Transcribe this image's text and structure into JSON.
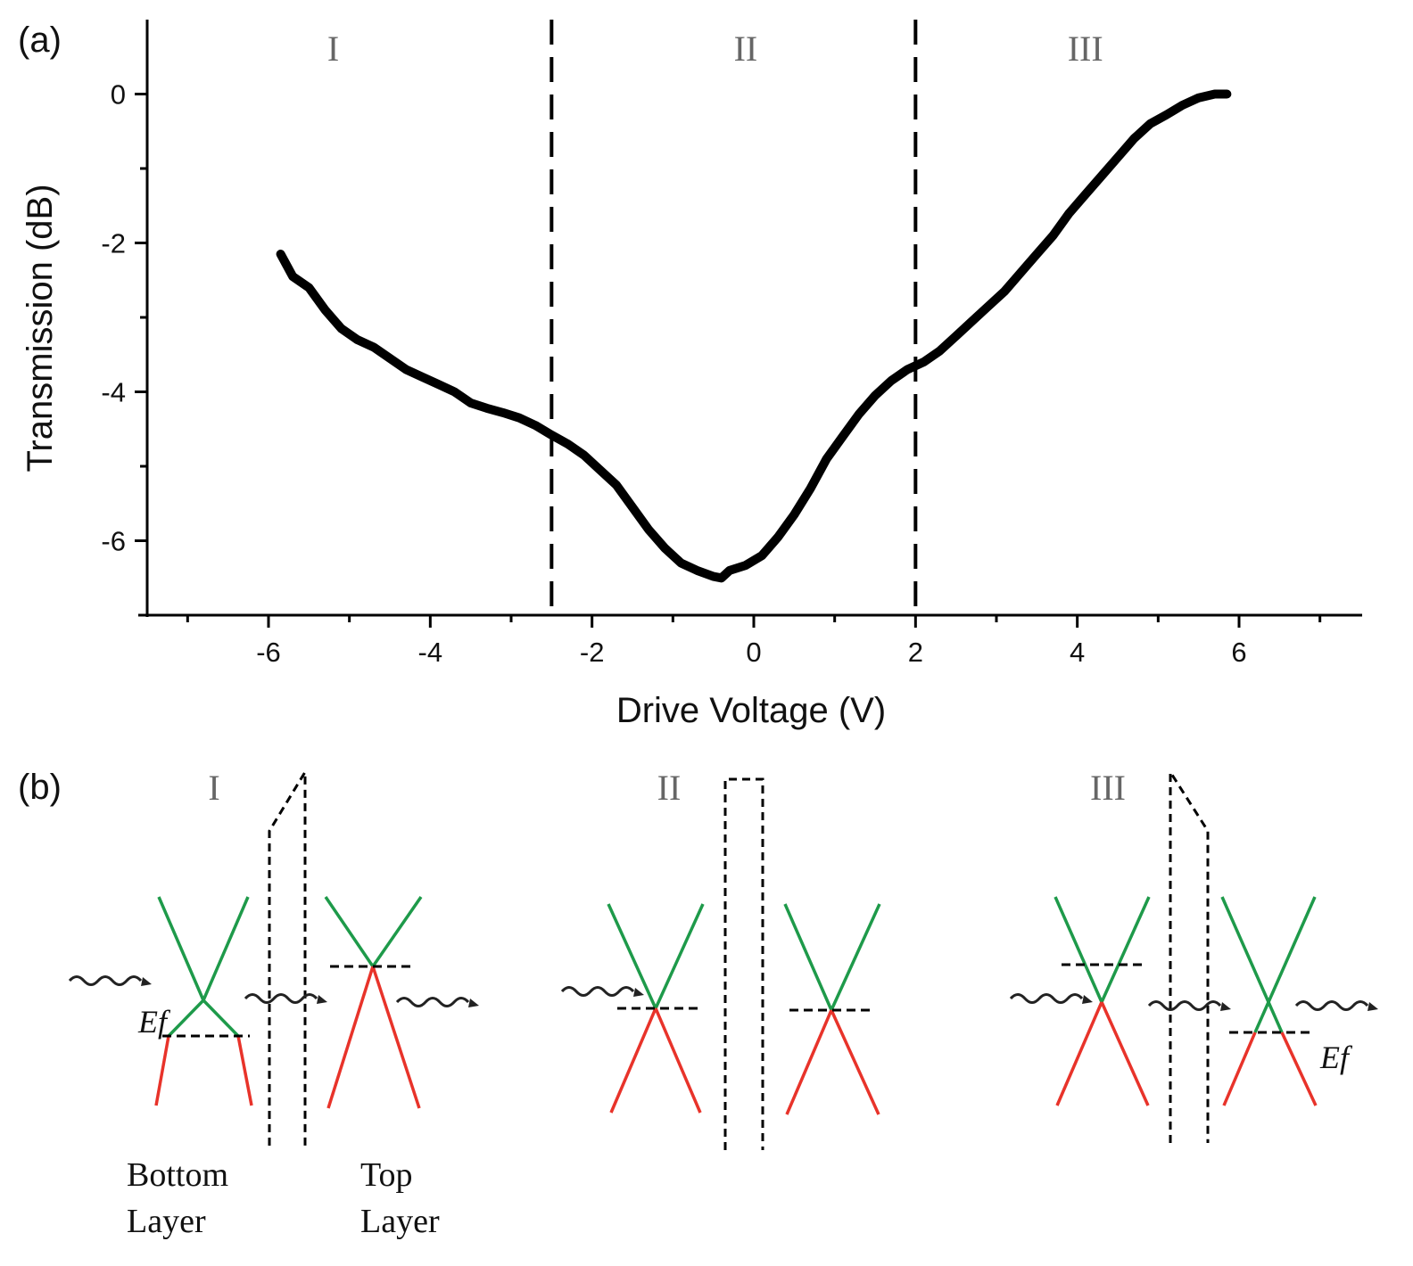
{
  "chart_data": {
    "type": "line",
    "panel_label": "(a)",
    "xlabel": "Drive Voltage (V)",
    "ylabel": "Transmission (dB)",
    "xlim": [
      -7.5,
      7.5
    ],
    "ylim": [
      -7.0,
      1.0
    ],
    "xticks": [
      -6,
      -4,
      -2,
      0,
      2,
      4,
      6
    ],
    "yticks": [
      0,
      -2,
      -4,
      -6
    ],
    "xtick_labels": [
      "-6",
      "-4",
      "-2",
      "0",
      "2",
      "4",
      "6"
    ],
    "ytick_labels": [
      "0",
      "-2",
      "-4",
      "-6"
    ],
    "xminor": [
      -7,
      -5,
      -3,
      -1,
      1,
      3,
      5,
      7
    ],
    "yminor": [
      -5,
      -3,
      -1
    ],
    "vlines": [
      -2.5,
      2.0
    ],
    "regions": [
      {
        "label": "I",
        "x": -5.2
      },
      {
        "label": "II",
        "x": -0.1
      },
      {
        "label": "III",
        "x": 4.1
      }
    ],
    "series": [
      {
        "name": "Transmission",
        "x": [
          -5.85,
          -5.7,
          -5.5,
          -5.3,
          -5.1,
          -4.9,
          -4.7,
          -4.5,
          -4.3,
          -4.1,
          -3.9,
          -3.7,
          -3.5,
          -3.3,
          -3.1,
          -2.9,
          -2.7,
          -2.5,
          -2.3,
          -2.1,
          -1.9,
          -1.7,
          -1.5,
          -1.3,
          -1.1,
          -0.9,
          -0.7,
          -0.5,
          -0.4,
          -0.3,
          -0.1,
          0.1,
          0.3,
          0.5,
          0.7,
          0.9,
          1.1,
          1.3,
          1.5,
          1.7,
          1.9,
          2.1,
          2.3,
          2.5,
          2.7,
          2.9,
          3.1,
          3.3,
          3.5,
          3.7,
          3.9,
          4.1,
          4.3,
          4.5,
          4.7,
          4.9,
          5.1,
          5.3,
          5.5,
          5.7,
          5.85
        ],
        "y": [
          -2.15,
          -2.45,
          -2.6,
          -2.9,
          -3.15,
          -3.3,
          -3.4,
          -3.55,
          -3.7,
          -3.8,
          -3.9,
          -4.0,
          -4.15,
          -4.22,
          -4.28,
          -4.35,
          -4.45,
          -4.58,
          -4.7,
          -4.85,
          -5.05,
          -5.25,
          -5.55,
          -5.85,
          -6.1,
          -6.3,
          -6.4,
          -6.48,
          -6.5,
          -6.4,
          -6.33,
          -6.2,
          -5.95,
          -5.65,
          -5.3,
          -4.9,
          -4.6,
          -4.3,
          -4.05,
          -3.85,
          -3.7,
          -3.6,
          -3.45,
          -3.25,
          -3.05,
          -2.85,
          -2.65,
          -2.4,
          -2.15,
          -1.9,
          -1.6,
          -1.35,
          -1.1,
          -0.85,
          -0.6,
          -0.4,
          -0.28,
          -0.15,
          -0.05,
          0.0,
          0.0
        ]
      }
    ]
  },
  "diagram": {
    "panel_label": "(b)",
    "states": [
      {
        "label": "I",
        "fermi": "below-cross",
        "barrier": "tilt-up"
      },
      {
        "label": "II",
        "fermi": "at-cross",
        "barrier": "square"
      },
      {
        "label": "III",
        "fermi": "above-cross",
        "barrier": "tilt-down"
      }
    ],
    "ef_label": "Ef",
    "bottom_layer_line1": "Bottom",
    "bottom_layer_line2": "Layer",
    "top_layer_line1": "Top",
    "top_layer_line2": "Layer",
    "colors": {
      "upper_cone": "#1e9a4a",
      "lower_cone": "#e8332a",
      "curve": "#000000",
      "region_text": "#666666"
    }
  }
}
